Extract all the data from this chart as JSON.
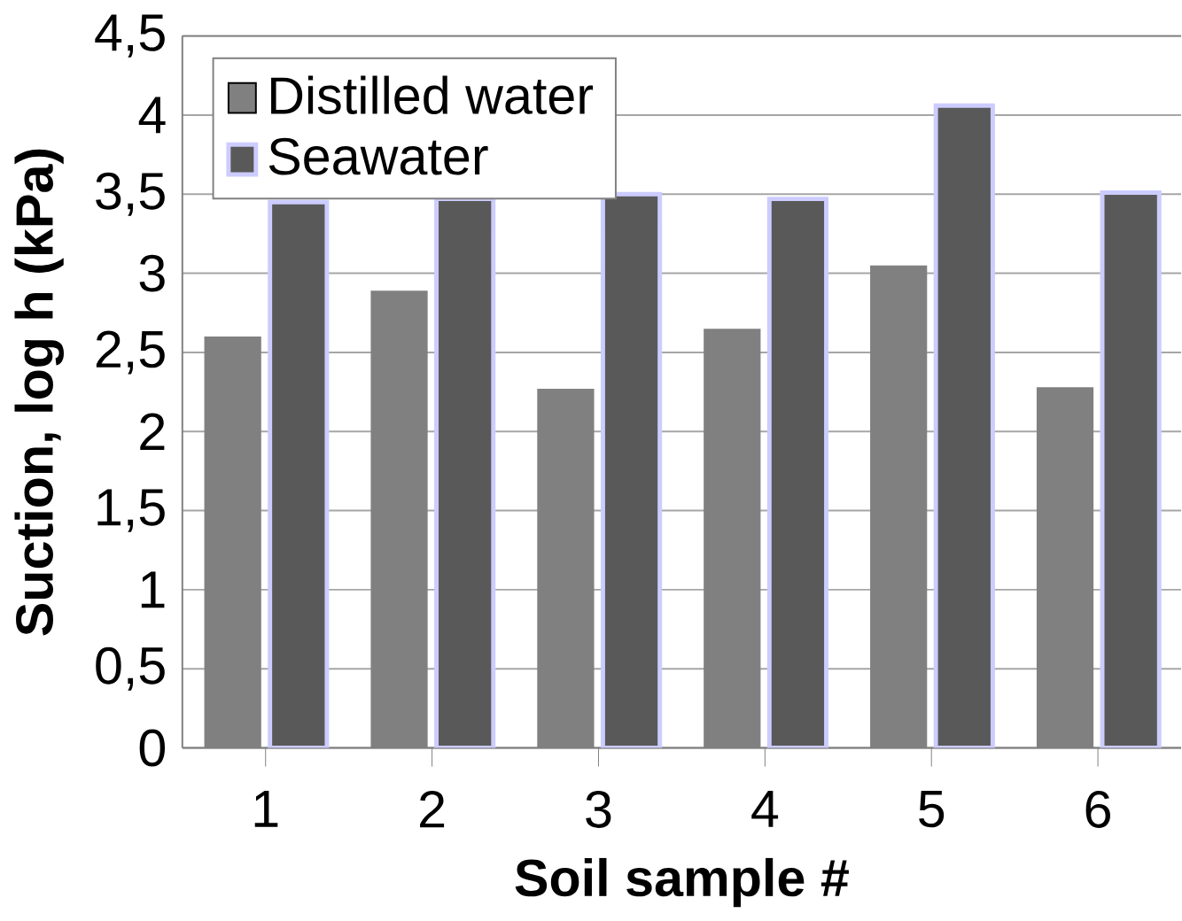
{
  "chart_data": {
    "type": "bar",
    "xlabel": "Soil sample #",
    "ylabel": "Suction, log h (kPa)",
    "categories": [
      "1",
      "2",
      "3",
      "4",
      "5",
      "6"
    ],
    "series": [
      {
        "name": "Distilled water",
        "color": "#808080",
        "values": [
          2.6,
          2.89,
          2.27,
          2.65,
          3.05,
          2.28
        ]
      },
      {
        "name": "Seawater",
        "color": "#595959",
        "values": [
          3.45,
          3.47,
          3.5,
          3.47,
          4.06,
          3.51
        ]
      }
    ],
    "ylim": [
      0,
      4.5
    ],
    "yticks": [
      0,
      {
        "value": 0.5,
        "label": "0,5"
      },
      1,
      {
        "value": 1.5,
        "label": "1,5"
      },
      2,
      {
        "value": 2.5,
        "label": "2,5"
      },
      3,
      {
        "value": 3.5,
        "label": "3,5"
      },
      4,
      {
        "value": 4.5,
        "label": "4,5"
      }
    ],
    "grid": "y",
    "legend": "top left"
  }
}
